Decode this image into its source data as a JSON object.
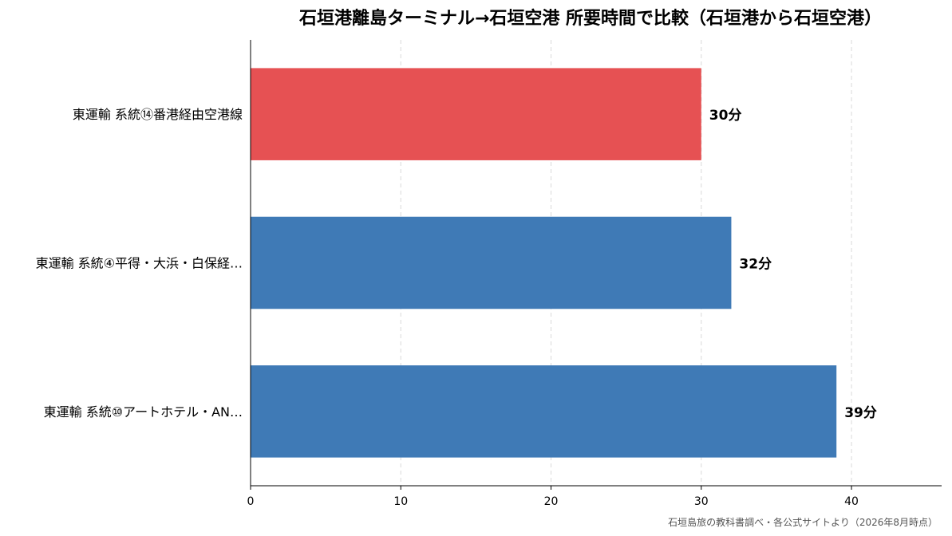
{
  "chart_data": {
    "type": "bar",
    "orientation": "horizontal",
    "title": "石垣港離島ターミナル→石垣空港 所要時間で比較（石垣港から石垣空港）",
    "categories": [
      "東運輸 系統⑭番港経由空港線",
      "東運輸 系統④平得・大浜・白保経…",
      "東運輸 系統⑩アートホテル・AN…"
    ],
    "values": [
      30,
      32,
      39
    ],
    "value_labels": [
      "30分",
      "32分",
      "39分"
    ],
    "bar_colors": [
      "#e65153",
      "#3f7ab6",
      "#3f7ab6"
    ],
    "xlabel": "",
    "ylabel": "",
    "xlim": [
      0,
      46
    ],
    "xticks": [
      0,
      10,
      20,
      30,
      40
    ],
    "xtick_labels": [
      "0",
      "10",
      "20",
      "30",
      "40"
    ],
    "grid": "x-dashed",
    "legend": "none"
  },
  "source": "石垣島旅の教科書調べ・各公式サイトより（2026年8月時点）"
}
